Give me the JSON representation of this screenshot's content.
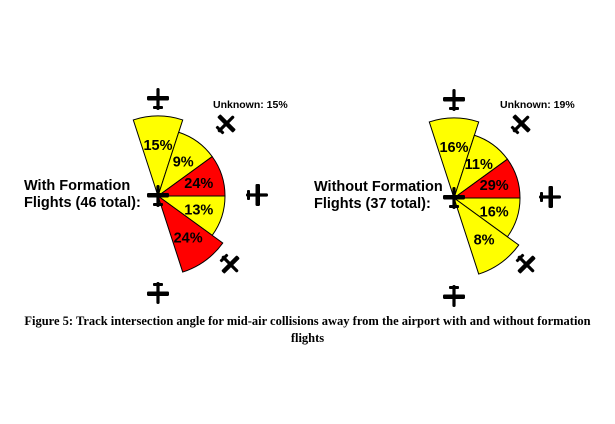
{
  "chart_data": [
    {
      "type": "pie",
      "title": "With Formation Flights (46 total):",
      "title_lines": [
        "With Formation",
        "Flights (46 total):"
      ],
      "unknown_label": "Unknown: 15%",
      "slices": [
        {
          "label": "15%",
          "value": 15,
          "color": "#ffff00"
        },
        {
          "label": "9%",
          "value": 9,
          "color": "#ffff00"
        },
        {
          "label": "24%",
          "value": 24,
          "color": "#ff0000"
        },
        {
          "label": "13%",
          "value": 13,
          "color": "#ffff00"
        },
        {
          "label": "24%",
          "value": 24,
          "color": "#ff0000"
        }
      ]
    },
    {
      "type": "pie",
      "title": "Without Formation Flights (37 total):",
      "title_lines": [
        "Without Formation",
        "Flights (37 total):"
      ],
      "unknown_label": "Unknown: 19%",
      "slices": [
        {
          "label": "16%",
          "value": 16,
          "color": "#ffff00"
        },
        {
          "label": "11%",
          "value": 11,
          "color": "#ffff00"
        },
        {
          "label": "29%",
          "value": 29,
          "color": "#ff0000"
        },
        {
          "label": "16%",
          "value": 16,
          "color": "#ffff00"
        },
        {
          "label": "8%",
          "value": 8,
          "color": "#ffff00"
        }
      ]
    }
  ],
  "caption": {
    "line1": "Figure 5: Track intersection angle for mid-air collisions away from the airport with and without formation",
    "line2": "flights"
  },
  "icons": [
    "airplane-icon"
  ]
}
